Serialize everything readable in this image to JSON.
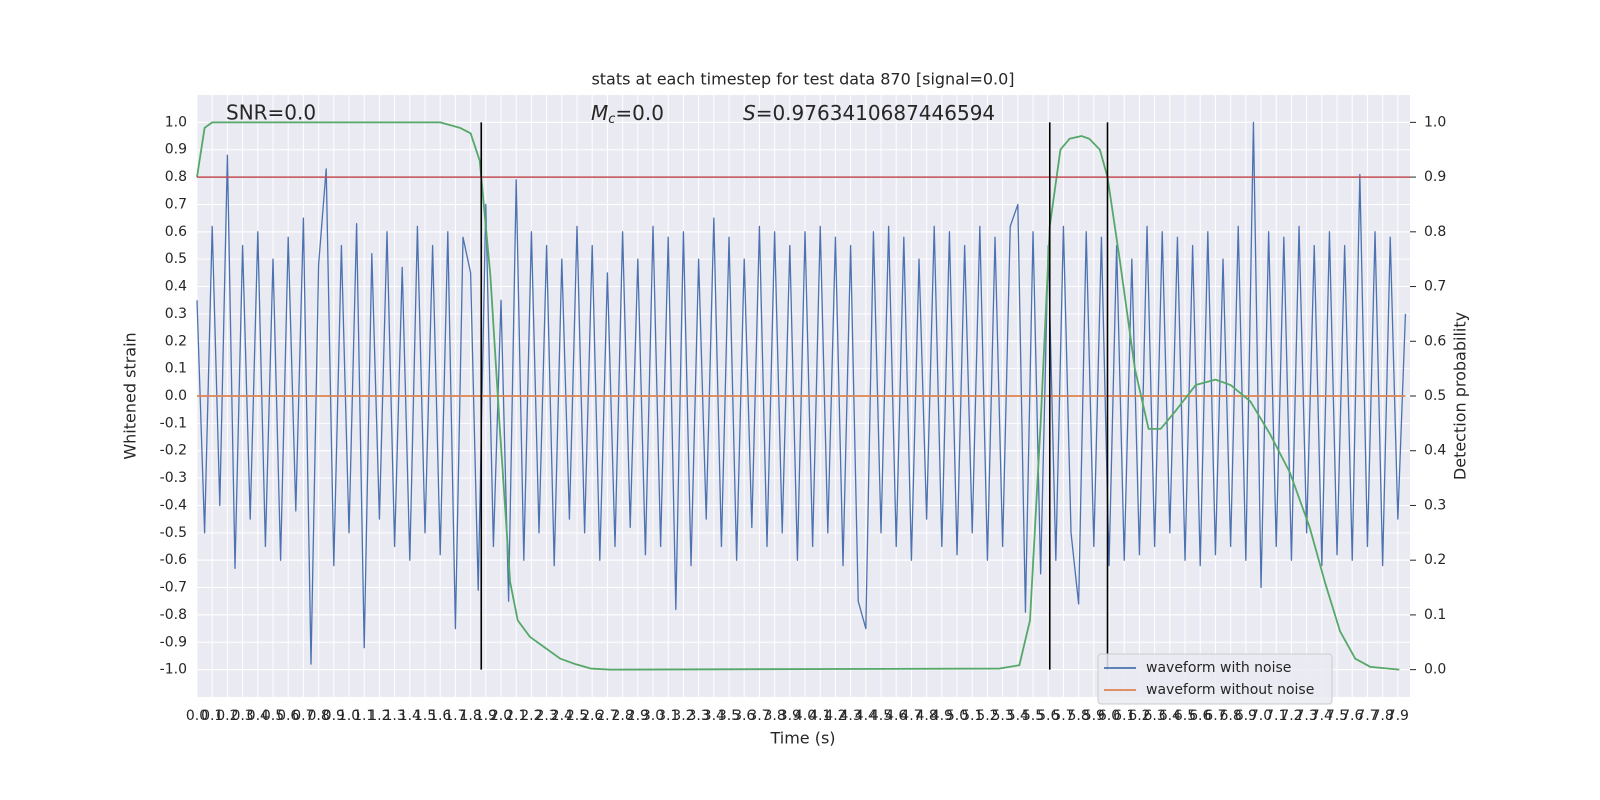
{
  "chart_data": {
    "type": "line",
    "title": "stats at each timestep for test data 870 [signal=0.0]",
    "xlabel": "Time (s)",
    "ylabel": "Whitened strain",
    "y2label": "Detection probability",
    "annotations": [
      {
        "text": "SNR=0.0"
      },
      {
        "symbol": "M",
        "sub": "c",
        "text": "=0.0"
      },
      {
        "symbol": "S",
        "text": "=0.9763410687446594"
      }
    ],
    "xlim": [
      0,
      7.98
    ],
    "ylim": [
      -1.1,
      1.1
    ],
    "y2lim": [
      -0.05,
      1.05
    ],
    "xticks": [
      {
        "value": 0,
        "label": "0.0"
      },
      0.1,
      0.2,
      0.3,
      0.4,
      0.5,
      0.6,
      0.7,
      0.8,
      0.9,
      {
        "value": 1,
        "label": "1.0"
      },
      1.1,
      1.2,
      1.3,
      1.4,
      1.5,
      1.6,
      1.7,
      1.8,
      1.9,
      {
        "value": 2,
        "label": "2.0"
      },
      2.1,
      2.2,
      2.3,
      2.4,
      2.5,
      2.6,
      2.7,
      2.8,
      2.9,
      {
        "value": 3,
        "label": "3.0"
      },
      3.1,
      3.2,
      3.3,
      3.4,
      3.5,
      3.6,
      3.7,
      3.8,
      3.9,
      {
        "value": 4,
        "label": "4.0"
      },
      4.1,
      4.2,
      4.3,
      4.4,
      4.5,
      4.6,
      4.7,
      4.8,
      4.9,
      {
        "value": 5,
        "label": "5.0"
      },
      5.1,
      5.2,
      5.3,
      5.4,
      5.5,
      5.6,
      5.7,
      5.8,
      5.9,
      {
        "value": 6,
        "label": "6.0"
      },
      6.1,
      6.2,
      6.3,
      6.4,
      6.5,
      6.6,
      6.7,
      6.8,
      6.9,
      {
        "value": 7,
        "label": "7.0"
      },
      7.1,
      7.2,
      7.3,
      7.4,
      7.5,
      7.6,
      7.7,
      7.8,
      7.9
    ],
    "yticks": [
      {
        "value": -1,
        "label": "-1.0"
      },
      -0.9,
      -0.8,
      -0.7,
      -0.6,
      -0.5,
      -0.4,
      -0.3,
      -0.2,
      -0.1,
      {
        "value": 0,
        "label": "0.0"
      },
      0.1,
      0.2,
      0.3,
      0.4,
      0.5,
      0.6,
      0.7,
      0.8,
      0.9,
      {
        "value": 1,
        "label": "1.0"
      }
    ],
    "y2ticks": [
      {
        "value": 0,
        "label": "0.0"
      },
      0.1,
      0.2,
      0.3,
      0.4,
      0.5,
      0.6,
      0.7,
      0.8,
      0.9,
      {
        "value": 1,
        "label": "1.0"
      }
    ],
    "grid": true,
    "legend": "lower right",
    "hlines": [
      {
        "value": 0.9,
        "axis": "y2",
        "color": "#c44e52"
      }
    ],
    "vlines": {
      "values": [
        1.87,
        5.61,
        5.99
      ],
      "color": "#000000"
    },
    "series": [
      {
        "name": "waveform with noise",
        "color": "#4c72b0",
        "axis": "y",
        "x": [
          0,
          0.05,
          0.1,
          0.15,
          0.2,
          0.25,
          0.3,
          0.35,
          0.4,
          0.45,
          0.5,
          0.55,
          0.6,
          0.65,
          0.7,
          0.75,
          0.8,
          0.85,
          0.9,
          0.95,
          1,
          1.05,
          1.1,
          1.15,
          1.2,
          1.25,
          1.3,
          1.35,
          1.4,
          1.45,
          1.5,
          1.55,
          1.6,
          1.65,
          1.7,
          1.75,
          1.8,
          1.85,
          1.9,
          1.95,
          2,
          2.05,
          2.1,
          2.15,
          2.2,
          2.25,
          2.3,
          2.35,
          2.4,
          2.45,
          2.5,
          2.55,
          2.6,
          2.65,
          2.7,
          2.75,
          2.8,
          2.85,
          2.9,
          2.95,
          3,
          3.05,
          3.1,
          3.15,
          3.2,
          3.25,
          3.3,
          3.35,
          3.4,
          3.45,
          3.5,
          3.55,
          3.6,
          3.65,
          3.7,
          3.75,
          3.8,
          3.85,
          3.9,
          3.95,
          4,
          4.05,
          4.1,
          4.15,
          4.2,
          4.25,
          4.3,
          4.35,
          4.4,
          4.45,
          4.5,
          4.55,
          4.6,
          4.65,
          4.7,
          4.75,
          4.8,
          4.85,
          4.9,
          4.95,
          5,
          5.05,
          5.1,
          5.15,
          5.2,
          5.25,
          5.3,
          5.35,
          5.4,
          5.45,
          5.5,
          5.55,
          5.6,
          5.65,
          5.7,
          5.75,
          5.8,
          5.85,
          5.9,
          5.95,
          6,
          6.05,
          6.1,
          6.15,
          6.2,
          6.25,
          6.3,
          6.35,
          6.4,
          6.45,
          6.5,
          6.55,
          6.6,
          6.65,
          6.7,
          6.75,
          6.8,
          6.85,
          6.9,
          6.95,
          7,
          7.05,
          7.1,
          7.15,
          7.2,
          7.25,
          7.3,
          7.35,
          7.4,
          7.45,
          7.5,
          7.55,
          7.6,
          7.65,
          7.7,
          7.75,
          7.8,
          7.85,
          7.9,
          7.95
        ],
        "values": [
          0.35,
          -0.5,
          0.62,
          -0.4,
          0.88,
          -0.63,
          0.55,
          -0.45,
          0.6,
          -0.55,
          0.5,
          -0.6,
          0.58,
          -0.42,
          0.65,
          -0.98,
          0.48,
          0.83,
          -0.62,
          0.55,
          -0.5,
          0.63,
          -0.92,
          0.52,
          -0.45,
          0.6,
          -0.55,
          0.47,
          -0.6,
          0.62,
          -0.5,
          0.55,
          -0.58,
          0.6,
          -0.85,
          0.58,
          0.45,
          -0.71,
          0.7,
          -0.55,
          0.35,
          -0.75,
          0.79,
          -0.6,
          0.6,
          -0.5,
          0.55,
          -0.62,
          0.5,
          -0.45,
          0.62,
          -0.5,
          0.55,
          -0.6,
          0.45,
          -0.55,
          0.6,
          -0.48,
          0.5,
          -0.58,
          0.62,
          -0.55,
          0.58,
          -0.78,
          0.6,
          -0.62,
          0.5,
          -0.45,
          0.65,
          -0.55,
          0.58,
          -0.6,
          0.5,
          -0.48,
          0.62,
          -0.55,
          0.6,
          -0.5,
          0.55,
          -0.6,
          0.6,
          -0.55,
          0.62,
          -0.5,
          0.58,
          -0.62,
          0.55,
          -0.75,
          -0.85,
          0.6,
          -0.5,
          0.62,
          -0.55,
          0.58,
          -0.6,
          0.5,
          -0.45,
          0.62,
          -0.55,
          0.6,
          -0.58,
          0.55,
          -0.5,
          0.62,
          -0.6,
          0.58,
          -0.55,
          0.62,
          0.7,
          -0.79,
          0.6,
          -0.65,
          0.55,
          -0.6,
          0.62,
          -0.5,
          -0.76,
          0.6,
          -0.55,
          0.58,
          -0.62,
          0.55,
          -0.6,
          0.5,
          -0.58,
          0.62,
          -0.55,
          0.6,
          -0.5,
          0.58,
          -0.6,
          0.55,
          -0.62,
          0.6,
          -0.58,
          0.5,
          -0.55,
          0.62,
          -0.6,
          1.0,
          -0.7,
          0.6,
          -0.55,
          0.58,
          -0.6,
          0.62,
          -0.5,
          0.55,
          -0.62,
          0.6,
          -0.58,
          0.55,
          -0.6,
          0.81,
          -0.55,
          0.6,
          -0.62,
          0.58,
          -0.45,
          0.3
        ]
      },
      {
        "name": "waveform without noise",
        "color": "#dd8452",
        "axis": "y",
        "x": [
          0,
          7.95
        ],
        "values": [
          0,
          0
        ]
      },
      {
        "color": "#55a868",
        "axis": "y2",
        "x": [
          0,
          0.05,
          0.1,
          1.6,
          1.73,
          1.8,
          1.86,
          1.93,
          1.99,
          2.06,
          2.11,
          2.19,
          2.29,
          2.39,
          2.49,
          2.59,
          2.72,
          5.28,
          5.41,
          5.48,
          5.55,
          5.61,
          5.68,
          5.74,
          5.82,
          5.87,
          5.94,
          5.99,
          6.07,
          6.17,
          6.26,
          6.34,
          6.43,
          6.57,
          6.7,
          6.8,
          6.93,
          7.06,
          7.19,
          7.32,
          7.42,
          7.52,
          7.62,
          7.72,
          7.91
        ],
        "values": [
          0.9,
          0.99,
          1.0,
          1.0,
          0.99,
          0.98,
          0.93,
          0.72,
          0.45,
          0.16,
          0.09,
          0.06,
          0.04,
          0.02,
          0.01,
          0.002,
          0,
          0.002,
          0.008,
          0.09,
          0.45,
          0.81,
          0.95,
          0.97,
          0.975,
          0.97,
          0.95,
          0.9,
          0.75,
          0.55,
          0.44,
          0.44,
          0.47,
          0.52,
          0.53,
          0.52,
          0.49,
          0.43,
          0.36,
          0.26,
          0.16,
          0.07,
          0.02,
          0.005,
          0
        ]
      }
    ]
  }
}
